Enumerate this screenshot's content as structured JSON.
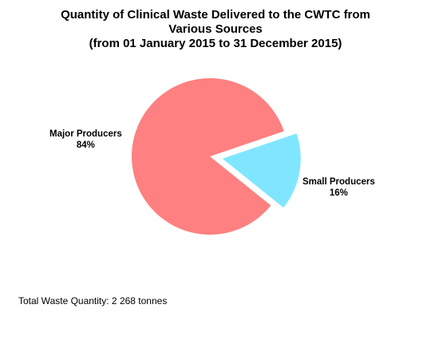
{
  "chart_data": {
    "type": "pie",
    "title_lines": [
      "Quantity of Clinical Waste Delivered to the CWTC from",
      "Various Sources",
      "(from 01 January 2015 to 31 December 2015)"
    ],
    "slices": [
      {
        "name": "Major Producers",
        "value": 84,
        "percent_label": "84%",
        "color": "#FF8080",
        "exploded": false
      },
      {
        "name": "Small Producers",
        "value": 16,
        "percent_label": "16%",
        "color": "#80E6FF",
        "exploded": true
      }
    ]
  },
  "footer": {
    "total_label": "Total Waste Quantity: 2 268 tonnes"
  }
}
